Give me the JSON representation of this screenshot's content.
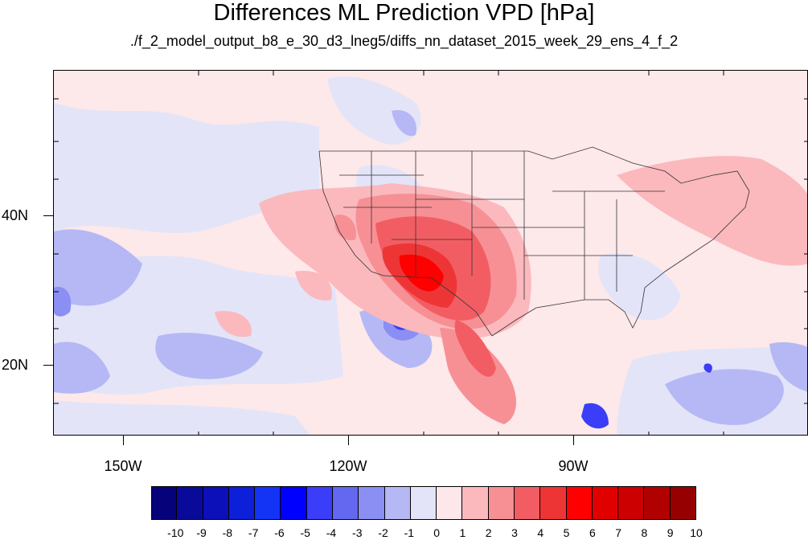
{
  "title": "Differences ML Prediction VPD [hPa]",
  "subtitle": "./f_2_model_output_b8_e_30_d3_lneg5/diffs_nn_dataset_2015_week_29_ens_4_f_2",
  "map": {
    "projection": "cylindrical equidistant",
    "lon_range": [
      -159.3,
      -59
    ],
    "lat_range": [
      11,
      59
    ],
    "x_ticks": [
      {
        "lon": -150,
        "label": "150W"
      },
      {
        "lon": -120,
        "label": "120W"
      },
      {
        "lon": -90,
        "label": "90W"
      }
    ],
    "y_ticks": [
      {
        "lat": 40,
        "label": "40N"
      },
      {
        "lat": 20,
        "label": "20N"
      }
    ]
  },
  "colorbar": {
    "labels": [
      "-10",
      "-9",
      "-8",
      "-7",
      "-6",
      "-5",
      "-4",
      "-3",
      "-2",
      "-1",
      "0",
      "1",
      "2",
      "3",
      "4",
      "5",
      "6",
      "7",
      "8",
      "9",
      "10"
    ],
    "colors": [
      "#06027a",
      "#0a0a9a",
      "#0c10b8",
      "#0d1fd8",
      "#1434f5",
      "#0000ff",
      "#3a3ef8",
      "#6467f0",
      "#8b8ef2",
      "#b6b8f5",
      "#e3e4f8",
      "#fde7ea",
      "#fbb9bd",
      "#f79095",
      "#f25d63",
      "#ee3536",
      "#fe0000",
      "#e00000",
      "#cc0000",
      "#b00000",
      "#960000"
    ]
  }
}
